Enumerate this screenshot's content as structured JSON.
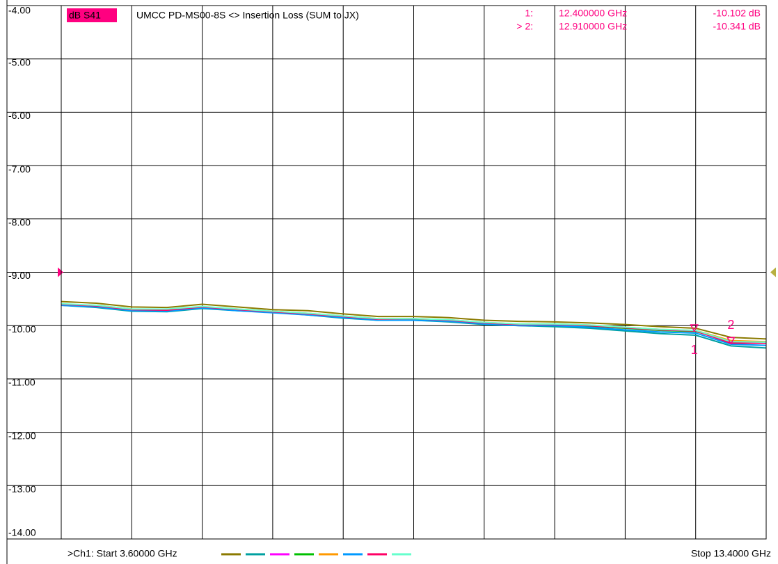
{
  "chart_data": {
    "type": "line",
    "trace_label": "dB S41",
    "title": "UMCC  PD-MS00-8S <> Insertion Loss (SUM to JX)",
    "start_label": ">Ch1: Start  3.60000 GHz",
    "stop_label": "Stop  13.4000 GHz",
    "x": [
      3.6,
      4.09,
      4.58,
      5.07,
      5.56,
      6.05,
      6.54,
      7.03,
      7.52,
      8.01,
      8.5,
      8.99,
      9.48,
      9.97,
      10.46,
      10.95,
      11.44,
      11.93,
      12.42,
      12.91,
      13.4
    ],
    "series": [
      {
        "color": "#8b7a00",
        "values": [
          -9.55,
          -9.58,
          -9.65,
          -9.66,
          -9.6,
          -9.65,
          -9.7,
          -9.72,
          -9.78,
          -9.83,
          -9.83,
          -9.85,
          -9.9,
          -9.92,
          -9.93,
          -9.95,
          -9.98,
          -10.02,
          -10.05,
          -10.22,
          -10.25
        ]
      },
      {
        "color": "#00a0a0",
        "values": [
          -9.62,
          -9.66,
          -9.73,
          -9.74,
          -9.68,
          -9.72,
          -9.75,
          -9.8,
          -9.86,
          -9.9,
          -9.9,
          -9.93,
          -9.98,
          -10.0,
          -10.02,
          -10.05,
          -10.1,
          -10.15,
          -10.18,
          -10.38,
          -10.42
        ]
      },
      {
        "color": "#ff00ff",
        "values": [
          -9.6,
          -9.63,
          -9.7,
          -9.7,
          -9.65,
          -9.7,
          -9.74,
          -9.78,
          -9.83,
          -9.88,
          -9.88,
          -9.9,
          -9.95,
          -9.98,
          -9.98,
          -10.0,
          -10.04,
          -10.08,
          -10.1,
          -10.31,
          -10.32
        ]
      },
      {
        "color": "#00c000",
        "values": [
          -9.61,
          -9.64,
          -9.71,
          -9.72,
          -9.66,
          -9.71,
          -9.75,
          -9.79,
          -9.84,
          -9.89,
          -9.89,
          -9.91,
          -9.96,
          -9.99,
          -9.99,
          -10.01,
          -10.05,
          -10.09,
          -10.11,
          -10.3,
          -10.31
        ]
      },
      {
        "color": "#ff9900",
        "values": [
          -9.6,
          -9.62,
          -9.69,
          -9.7,
          -9.65,
          -9.69,
          -9.73,
          -9.77,
          -9.82,
          -9.87,
          -9.87,
          -9.89,
          -9.94,
          -9.97,
          -9.97,
          -9.99,
          -10.03,
          -10.07,
          -10.09,
          -10.28,
          -10.3
        ]
      },
      {
        "color": "#0099ff",
        "values": [
          -9.62,
          -9.65,
          -9.72,
          -9.73,
          -9.67,
          -9.72,
          -9.76,
          -9.8,
          -9.85,
          -9.9,
          -9.9,
          -9.92,
          -9.97,
          -10.0,
          -10.0,
          -10.03,
          -10.08,
          -10.12,
          -10.14,
          -10.35,
          -10.37
        ]
      },
      {
        "color": "#ff0066",
        "values": [
          -9.6,
          -9.63,
          -9.7,
          -9.71,
          -9.65,
          -9.7,
          -9.74,
          -9.78,
          -9.83,
          -9.88,
          -9.87,
          -9.9,
          -9.95,
          -9.98,
          -9.98,
          -10.0,
          -10.04,
          -10.08,
          -10.1,
          -10.33,
          -10.33
        ]
      },
      {
        "color": "#66ffcc",
        "values": [
          -9.59,
          -9.62,
          -9.69,
          -9.69,
          -9.64,
          -9.69,
          -9.73,
          -9.77,
          -9.82,
          -9.87,
          -9.87,
          -9.89,
          -9.94,
          -9.97,
          -9.97,
          -9.99,
          -10.03,
          -10.07,
          -10.09,
          -10.3,
          -10.31
        ]
      }
    ],
    "xlim": [
      3.6,
      13.4
    ],
    "xticks": [
      3.6,
      4.58,
      5.56,
      6.54,
      7.52,
      8.5,
      9.48,
      10.46,
      11.44,
      12.42,
      13.4
    ],
    "ylim": [
      -14,
      -4
    ],
    "yticks": [
      {
        "value": -4,
        "label": "-4.00"
      },
      {
        "value": -5,
        "label": "-5.00"
      },
      {
        "value": -6,
        "label": "-6.00"
      },
      {
        "value": -7,
        "label": "-7.00"
      },
      {
        "value": -8,
        "label": "-8.00"
      },
      {
        "value": -9,
        "label": "-9.00"
      },
      {
        "value": -10,
        "label": "-10.00"
      },
      {
        "value": -11,
        "label": "-11.00"
      },
      {
        "value": -12,
        "label": "-12.00"
      },
      {
        "value": -13,
        "label": "-13.00"
      },
      {
        "value": -14,
        "label": "-14.00"
      }
    ],
    "grid": true,
    "reference_level": -9,
    "markers": [
      {
        "label": "1",
        "x": 12.4,
        "value": -10.102,
        "label_position": "below",
        "readout_index": "1:",
        "readout_freq": "12.400000 GHz",
        "readout_value": "-10.102 dB"
      },
      {
        "label": "2",
        "x": 12.91,
        "value": -10.341,
        "label_position": "above",
        "readout_index": "> 2:",
        "readout_freq": "12.910000 GHz",
        "readout_value": "-10.341 dB"
      }
    ]
  }
}
